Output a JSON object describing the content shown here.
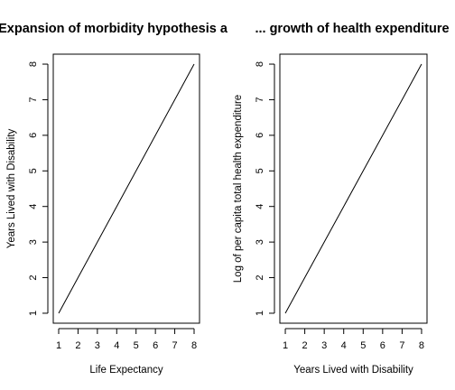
{
  "chart_data": [
    {
      "type": "line",
      "title": "Expansion of morbidity hypothesis a",
      "xlabel": "Life Expectancy",
      "ylabel": "Years Lived with Disability",
      "x": [
        1,
        2,
        3,
        4,
        5,
        6,
        7,
        8
      ],
      "y": [
        1,
        2,
        3,
        4,
        5,
        6,
        7,
        8
      ],
      "xticks": [
        "1",
        "2",
        "3",
        "4",
        "5",
        "6",
        "7",
        "8"
      ],
      "yticks": [
        "1",
        "2",
        "3",
        "4",
        "5",
        "6",
        "7",
        "8"
      ],
      "xlim": [
        0.72,
        8.28
      ],
      "ylim": [
        0.72,
        8.28
      ],
      "grid": false
    },
    {
      "type": "line",
      "title": "... growth of health expenditure",
      "xlabel": "Years Lived with Disability",
      "ylabel": "Log of per capita total health expenditure",
      "x": [
        1,
        2,
        3,
        4,
        5,
        6,
        7,
        8
      ],
      "y": [
        1,
        2,
        3,
        4,
        5,
        6,
        7,
        8
      ],
      "xticks": [
        "1",
        "2",
        "3",
        "4",
        "5",
        "6",
        "7",
        "8"
      ],
      "yticks": [
        "1",
        "2",
        "3",
        "4",
        "5",
        "6",
        "7",
        "8"
      ],
      "xlim": [
        0.72,
        8.28
      ],
      "ylim": [
        0.72,
        8.28
      ],
      "grid": false
    }
  ]
}
